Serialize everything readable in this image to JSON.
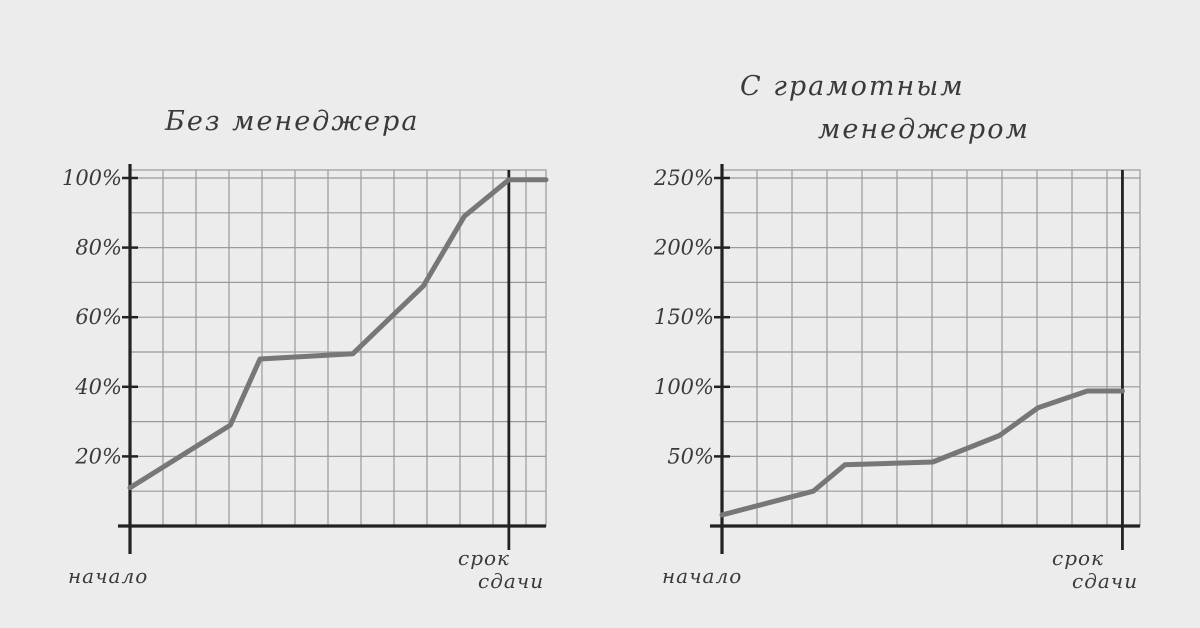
{
  "chart_data": [
    {
      "type": "line",
      "title": "Без менеджера",
      "ylim": [
        0,
        100
      ],
      "y_ticks": [
        {
          "value": 20,
          "label": "20%"
        },
        {
          "value": 40,
          "label": "40%"
        },
        {
          "value": 60,
          "label": "60%"
        },
        {
          "value": 80,
          "label": "80%"
        },
        {
          "value": 100,
          "label": "100%"
        }
      ],
      "x_start_label": "начало",
      "deadline_label": [
        "срок",
        "сдачи"
      ],
      "x": [
        0,
        2.7,
        3.5,
        6,
        7.9,
        9,
        10.2,
        11.2
      ],
      "values": [
        11,
        29,
        48,
        49.5,
        69,
        89,
        99.5,
        99.5
      ],
      "xlim": [
        0,
        11.2
      ],
      "deadline_x": 10.2,
      "grid": true
    },
    {
      "type": "line",
      "title": [
        "С грамотным",
        "менеджером"
      ],
      "ylim": [
        0,
        250
      ],
      "y_ticks": [
        {
          "value": 50,
          "label": "50%"
        },
        {
          "value": 100,
          "label": "100%"
        },
        {
          "value": 150,
          "label": "150%"
        },
        {
          "value": 200,
          "label": "200%"
        },
        {
          "value": 250,
          "label": "250%"
        }
      ],
      "x_start_label": "начало",
      "deadline_label": [
        "срок",
        "сдачи"
      ],
      "x": [
        0,
        2.6,
        3.5,
        6,
        7.9,
        9,
        10.4,
        11.4
      ],
      "values": [
        8,
        25,
        44,
        46,
        65,
        85,
        97,
        97
      ],
      "xlim": [
        0,
        11.9
      ],
      "deadline_x": 11.4,
      "grid": true
    }
  ],
  "colors": {
    "line": "#777777",
    "grid": "#9a9a9a",
    "axis": "#222222",
    "background": "#ececec"
  }
}
